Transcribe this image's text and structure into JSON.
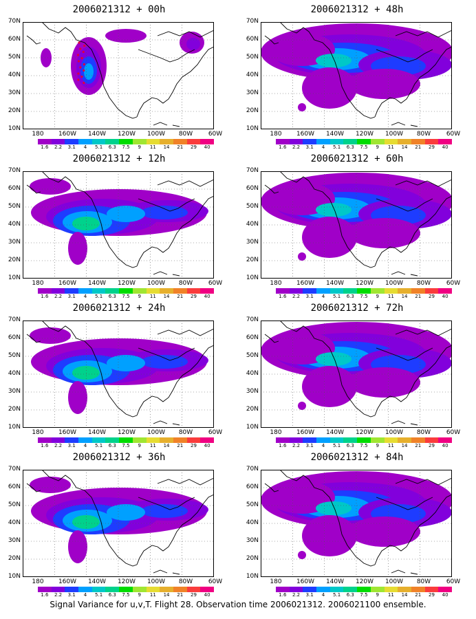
{
  "caption": "Signal Variance for u,v,T. Flight 28. Observation time 2006021312. 2006021100 ensemble.",
  "panels": [
    {
      "title": "2006021312 + 00h",
      "shading": "small",
      "obs_track": true
    },
    {
      "title": "2006021312 + 48h",
      "shading": "broad"
    },
    {
      "title": "2006021312 + 12h",
      "shading": "medium"
    },
    {
      "title": "2006021312 + 60h",
      "shading": "broad"
    },
    {
      "title": "2006021312 + 24h",
      "shading": "medium"
    },
    {
      "title": "2006021312 + 72h",
      "shading": "broad"
    },
    {
      "title": "2006021312 + 36h",
      "shading": "medium"
    },
    {
      "title": "2006021312 + 84h",
      "shading": "broad"
    }
  ],
  "axes": {
    "y_labels": [
      "70N",
      "60N",
      "50N",
      "40N",
      "30N",
      "20N",
      "10N"
    ],
    "x_labels": [
      "180",
      "160W",
      "140W",
      "120W",
      "100W",
      "80W",
      "60W"
    ]
  },
  "colorbar": {
    "levels": [
      "1.6",
      "2.2",
      "3.1",
      "4",
      "5.1",
      "6.3",
      "7.5",
      "9",
      "11",
      "14",
      "21",
      "29",
      "40"
    ],
    "colors": [
      "#a000c8",
      "#8200dc",
      "#1e3cff",
      "#00a0ff",
      "#00c8c8",
      "#00d28c",
      "#00dc00",
      "#a0e632",
      "#e6dc32",
      "#e6af2d",
      "#f08228",
      "#fa3c3c",
      "#f00082"
    ]
  }
}
